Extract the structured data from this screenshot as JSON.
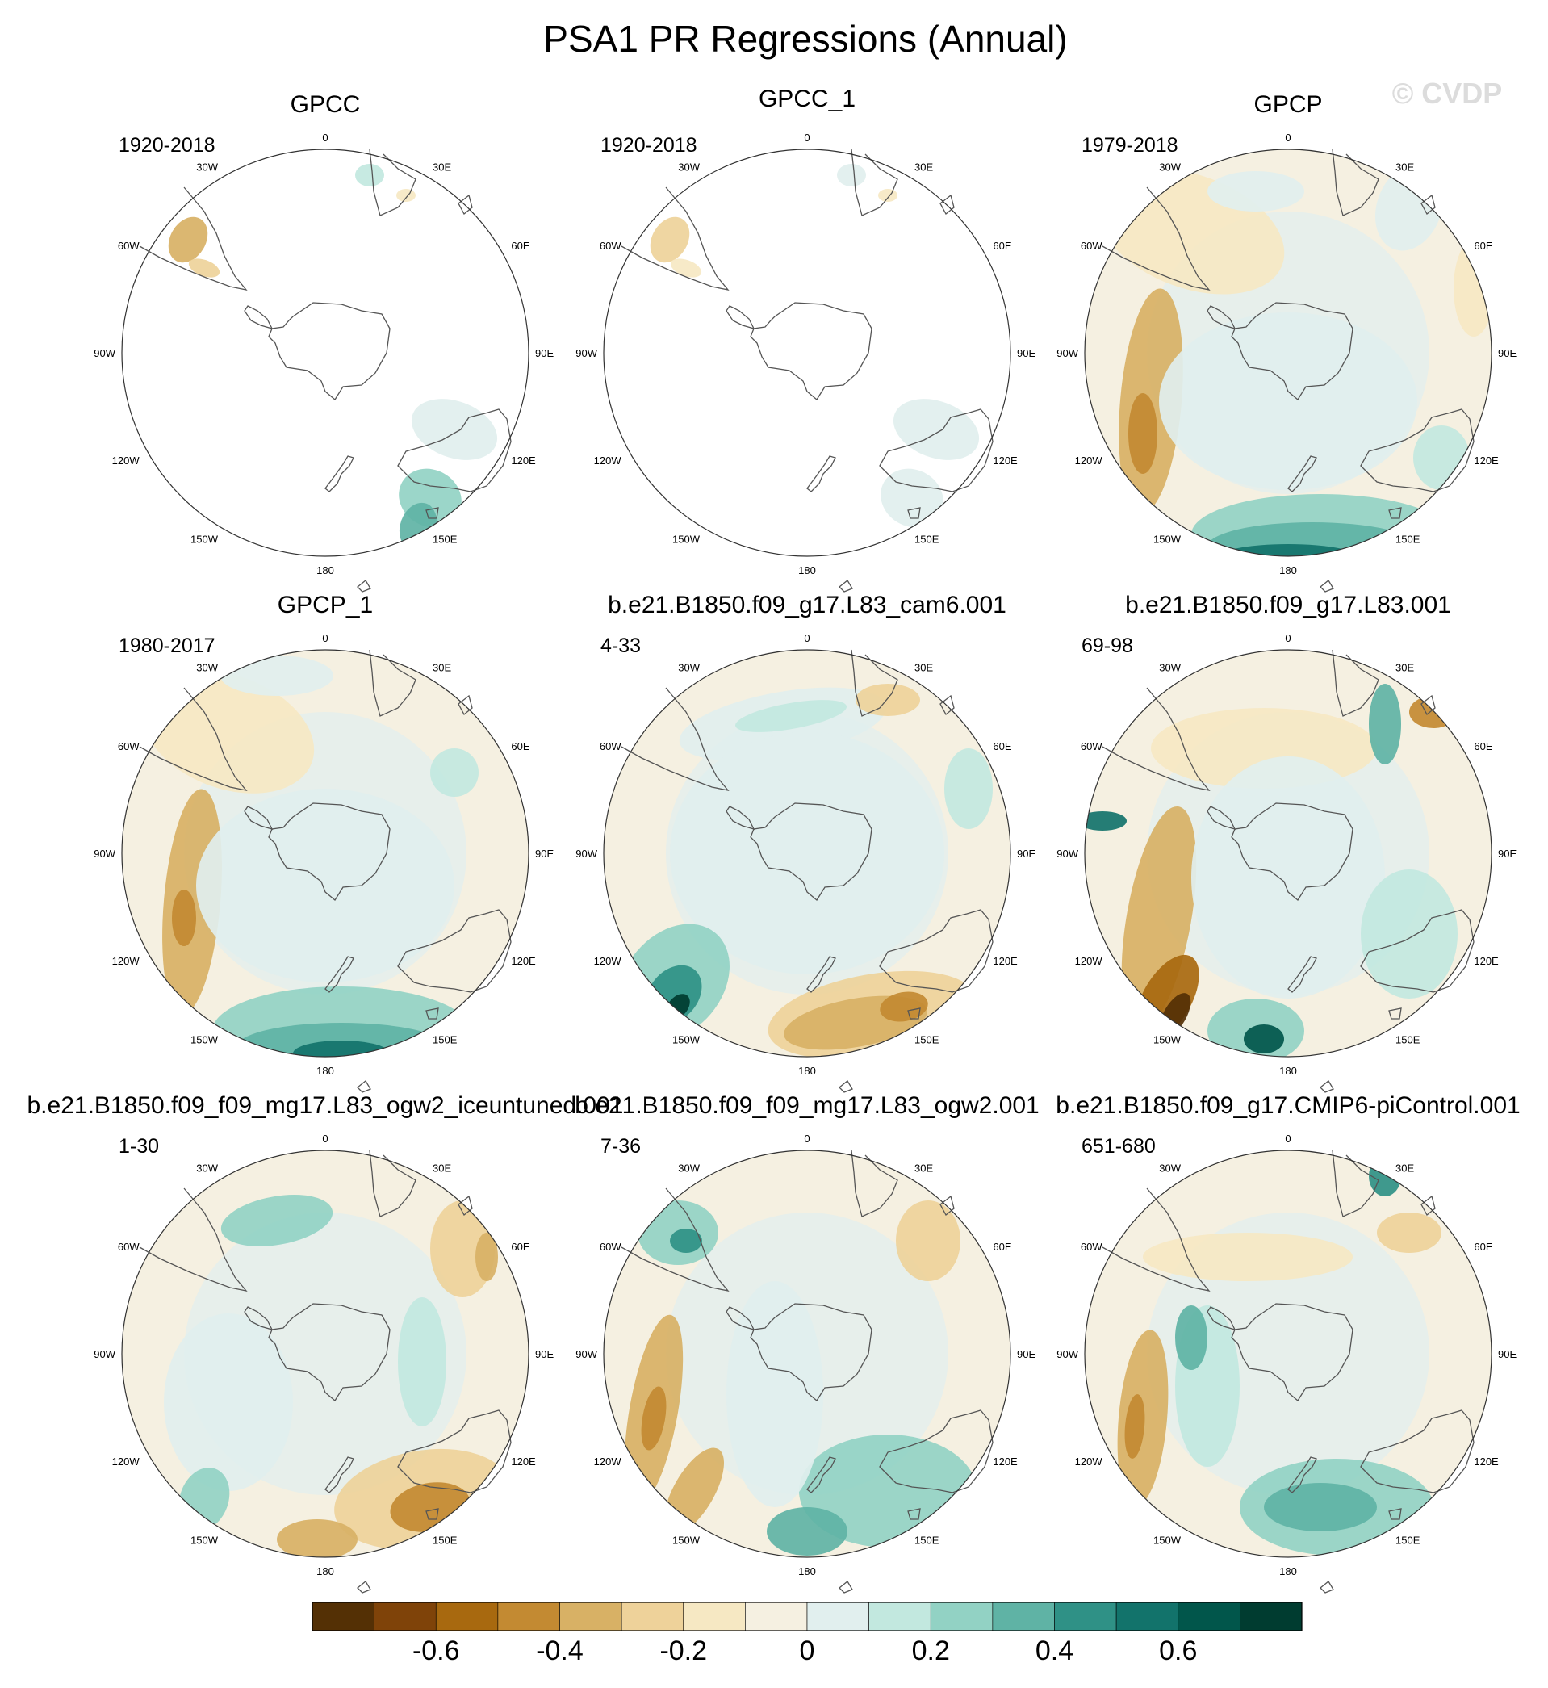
{
  "figure": {
    "title": "PSA1 PR Regressions (Annual)",
    "watermark": "© CVDP"
  },
  "longitude_labels": [
    "0",
    "30E",
    "60E",
    "90E",
    "120E",
    "150E",
    "180",
    "150W",
    "120W",
    "90W",
    "60W",
    "30W"
  ],
  "panels": [
    {
      "title": "GPCC",
      "years": "1920-2018",
      "coverage": "land"
    },
    {
      "title": "GPCC_1",
      "years": "1920-2018",
      "coverage": "land"
    },
    {
      "title": "GPCP",
      "years": "1979-2018",
      "coverage": "full"
    },
    {
      "title": "GPCP_1",
      "years": "1980-2017",
      "coverage": "full"
    },
    {
      "title": "b.e21.B1850.f09_g17.L83_cam6.001",
      "years": "4-33",
      "coverage": "full"
    },
    {
      "title": "b.e21.B1850.f09_g17.L83.001",
      "years": "69-98",
      "coverage": "full"
    },
    {
      "title": "b.e21.B1850.f09_f09_mg17.L83_ogw2_iceuntuned.001",
      "years": "1-30",
      "coverage": "full"
    },
    {
      "title": "b.e21.B1850.f09_f09_mg17.L83_ogw2.001",
      "years": "7-36",
      "coverage": "full"
    },
    {
      "title": "b.e21.B1850.f09_g17.CMIP6-piControl.001",
      "years": "651-680",
      "coverage": "full"
    }
  ],
  "colorbar": {
    "colors": [
      "#543005",
      "#7f4309",
      "#a8690f",
      "#c38a32",
      "#d8b165",
      "#eed29a",
      "#f6e8c3",
      "#f5f0e1",
      "#e1efee",
      "#c2e8df",
      "#92d2c4",
      "#5fb3a5",
      "#2f9186",
      "#12736b",
      "#01564b",
      "#003c30"
    ],
    "tick_labels": [
      "-0.6",
      "-0.4",
      "-0.2",
      "0",
      "0.2",
      "0.4",
      "0.6"
    ]
  }
}
